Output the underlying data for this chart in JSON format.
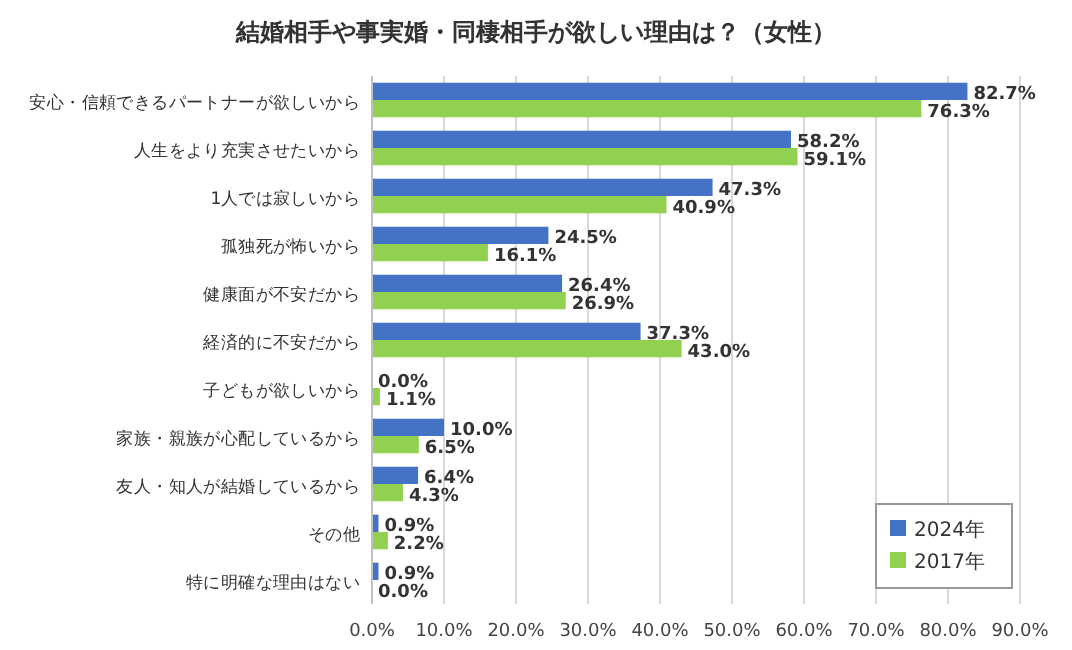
{
  "chart_data": {
    "type": "bar",
    "orientation": "horizontal",
    "title": "結婚相手や事実婚・同棲相手が欲しい理由は？（女性）",
    "categories": [
      "安心・信頼できるパートナーが欲しいから",
      "人生をより充実させたいから",
      "1人では寂しいから",
      "孤独死が怖いから",
      "健康面が不安だから",
      "経済的に不安だから",
      "子どもが欲しいから",
      "家族・親族が心配しているから",
      "友人・知人が結婚しているから",
      "その他",
      "特に明確な理由はない"
    ],
    "series": [
      {
        "name": "2024年",
        "color": "#4472c4",
        "values": [
          82.7,
          58.2,
          47.3,
          24.5,
          26.4,
          37.3,
          0.0,
          10.0,
          6.4,
          0.9,
          0.9
        ],
        "value_labels": [
          "82.7%",
          "58.2%",
          "47.3%",
          "24.5%",
          "26.4%",
          "37.3%",
          "0.0%",
          "10.0%",
          "6.4%",
          "0.9%",
          "0.9%"
        ]
      },
      {
        "name": "2017年",
        "color": "#92d050",
        "values": [
          76.3,
          59.1,
          40.9,
          16.1,
          26.9,
          43.0,
          1.1,
          6.5,
          4.3,
          2.2,
          0.0
        ],
        "value_labels": [
          "76.3%",
          "59.1%",
          "40.9%",
          "16.1%",
          "26.9%",
          "43.0%",
          "1.1%",
          "6.5%",
          "4.3%",
          "2.2%",
          "0.0%"
        ]
      }
    ],
    "xlim": [
      0,
      90
    ],
    "xticks": [
      {
        "value": 0,
        "label": "0.0%"
      },
      {
        "value": 10,
        "label": "10.0%"
      },
      {
        "value": 20,
        "label": "20.0%"
      },
      {
        "value": 30,
        "label": "30.0%"
      },
      {
        "value": 40,
        "label": "40.0%"
      },
      {
        "value": 50,
        "label": "50.0%"
      },
      {
        "value": 60,
        "label": "60.0%"
      },
      {
        "value": 70,
        "label": "70.0%"
      },
      {
        "value": 80,
        "label": "80.0%"
      },
      {
        "value": 90,
        "label": "90.0%"
      }
    ],
    "grid": "x",
    "legend": "bottom right"
  }
}
